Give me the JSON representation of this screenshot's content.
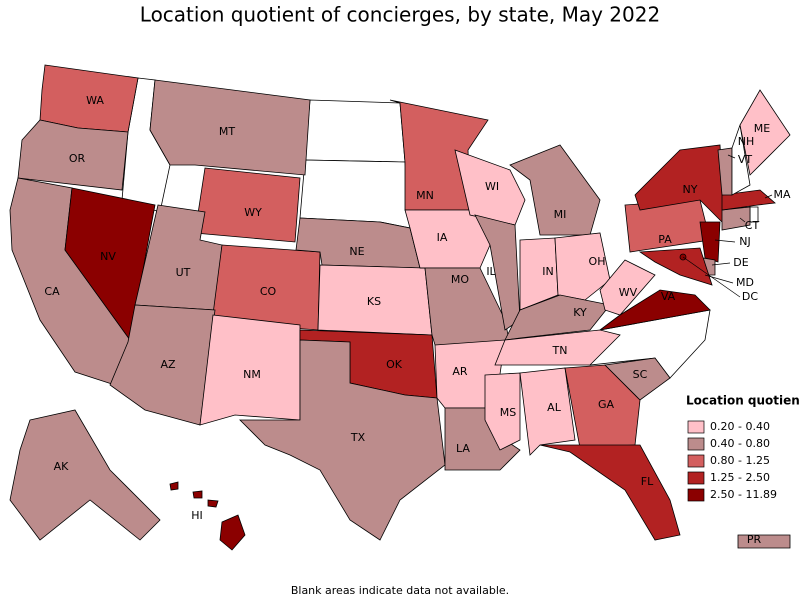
{
  "title": "Location quotient of concierges, by state, May 2022",
  "legend": {
    "title": "Location quotient",
    "items": [
      {
        "label": "0.20 - 0.40",
        "color": "#ffc0c8"
      },
      {
        "label": "0.40 - 0.80",
        "color": "#bc8c8c"
      },
      {
        "label": "0.80 - 1.25",
        "color": "#d35f5f"
      },
      {
        "label": "1.25 - 2.50",
        "color": "#b22222"
      },
      {
        "label": "2.50 - 11.89",
        "color": "#8b0000"
      }
    ]
  },
  "states": [
    {
      "label": "WA",
      "color": "#d35f5f"
    },
    {
      "label": "OR",
      "color": "#bc8c8c"
    },
    {
      "label": "CA",
      "color": "#bc8c8c"
    },
    {
      "label": "NV",
      "color": "#8b0000"
    },
    {
      "label": "MT",
      "color": "#bc8c8c"
    },
    {
      "label": "WY",
      "color": "#d35f5f"
    },
    {
      "label": "UT",
      "color": "#bc8c8c"
    },
    {
      "label": "CO",
      "color": "#d35f5f"
    },
    {
      "label": "AZ",
      "color": "#bc8c8c"
    },
    {
      "label": "NM",
      "color": "#ffc0c8"
    },
    {
      "label": "NE",
      "color": "#bc8c8c"
    },
    {
      "label": "KS",
      "color": "#ffc0c8"
    },
    {
      "label": "OK",
      "color": "#b22222"
    },
    {
      "label": "TX",
      "color": "#bc8c8c"
    },
    {
      "label": "MN",
      "color": "#d35f5f"
    },
    {
      "label": "IA",
      "color": "#ffc0c8"
    },
    {
      "label": "MO",
      "color": "#bc8c8c"
    },
    {
      "label": "AR",
      "color": "#ffc0c8"
    },
    {
      "label": "LA",
      "color": "#bc8c8c"
    },
    {
      "label": "WI",
      "color": "#ffc0c8"
    },
    {
      "label": "IL",
      "color": "#bc8c8c"
    },
    {
      "label": "MI",
      "color": "#bc8c8c"
    },
    {
      "label": "IN",
      "color": "#ffc0c8"
    },
    {
      "label": "OH",
      "color": "#ffc0c8"
    },
    {
      "label": "KY",
      "color": "#bc8c8c"
    },
    {
      "label": "TN",
      "color": "#ffc0c8"
    },
    {
      "label": "MS",
      "color": "#ffc0c8"
    },
    {
      "label": "AL",
      "color": "#ffc0c8"
    },
    {
      "label": "GA",
      "color": "#d35f5f"
    },
    {
      "label": "FL",
      "color": "#b22222"
    },
    {
      "label": "SC",
      "color": "#bc8c8c"
    },
    {
      "label": "VA",
      "color": "#8b0000"
    },
    {
      "label": "WV",
      "color": "#ffc0c8"
    },
    {
      "label": "PA",
      "color": "#d35f5f"
    },
    {
      "label": "NY",
      "color": "#b22222"
    },
    {
      "label": "NJ",
      "color": "#8b0000"
    },
    {
      "label": "DE",
      "color": "#bc8c8c"
    },
    {
      "label": "MD",
      "color": "#b22222"
    },
    {
      "label": "DC",
      "color": "#8b0000"
    },
    {
      "label": "CT",
      "color": "#bc8c8c"
    },
    {
      "label": "MA",
      "color": "#b22222"
    },
    {
      "label": "VT",
      "color": "#bc8c8c"
    },
    {
      "label": "NH",
      "color": "#ffffff"
    },
    {
      "label": "ME",
      "color": "#ffc0c8"
    },
    {
      "label": "AK",
      "color": "#bc8c8c"
    },
    {
      "label": "HI",
      "color": "#8b0000"
    },
    {
      "label": "PR",
      "color": "#bc8c8c"
    }
  ],
  "note": "Blank areas indicate data not available."
}
